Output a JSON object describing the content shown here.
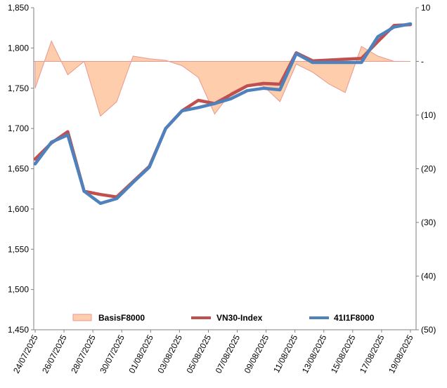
{
  "chart_data": {
    "type": "line",
    "title": "",
    "xlabel": "",
    "ylabel": "",
    "x_tick_labels": [
      "24/07/2025",
      "26/07/2025",
      "28/07/2025",
      "30/07/2025",
      "01/08/2025",
      "03/08/2025",
      "05/08/2025",
      "07/08/2025",
      "09/08/2025",
      "11/08/2025",
      "13/08/2025",
      "15/08/2025",
      "17/08/2025",
      "19/08/2025"
    ],
    "y_left": {
      "min": 1450,
      "max": 1850,
      "ticks": [
        1450,
        1500,
        1550,
        1600,
        1650,
        1700,
        1750,
        1800,
        1850
      ],
      "tick_labels": [
        "1,450",
        "1,500",
        "1,550",
        "1,600",
        "1,650",
        "1,700",
        "1,750",
        "1,800",
        "1,850"
      ]
    },
    "y_right": {
      "min": -50,
      "max": 10,
      "ticks": [
        10,
        0,
        -10,
        -20,
        -30,
        -40,
        -50
      ],
      "tick_labels": [
        "10",
        "-",
        "(10)",
        "(20)",
        "(30)",
        "(40)",
        "(50)"
      ]
    },
    "grid": false,
    "legend": {
      "position": "bottom",
      "entries": [
        "BasisF8000",
        "VN30-Index",
        "41I1F8000"
      ]
    },
    "colors": {
      "basis_fill": "#FDCDAC",
      "basis_stroke": "#E8988F",
      "vn30": "#C0504D",
      "futures": "#4F81BD",
      "axis": "#808080"
    },
    "series": [
      {
        "name": "BasisF8000",
        "kind": "area",
        "axis": "right",
        "x": [
          0,
          1,
          2,
          3,
          4,
          5,
          6,
          7,
          8,
          9,
          10,
          11,
          12,
          13,
          14,
          15,
          16,
          17,
          18,
          19,
          20,
          21,
          22,
          23
        ],
        "values": [
          -5.0,
          3.8,
          -2.5,
          0.0,
          -10.2,
          -7.5,
          1.0,
          0.5,
          0.2,
          -0.8,
          -3.0,
          -9.8,
          -5.8,
          -4.3,
          -4.6,
          -7.5,
          -0.5,
          -2.0,
          -4.2,
          -5.8,
          2.8,
          1.0,
          0.0,
          0.0
        ]
      },
      {
        "name": "VN30-Index",
        "kind": "line",
        "axis": "left",
        "x": [
          0,
          1,
          2,
          3,
          4,
          5,
          6,
          7,
          8,
          9,
          10,
          11,
          12,
          13,
          14,
          15,
          16,
          17,
          18,
          19,
          20,
          21,
          22,
          23
        ],
        "values": [
          1662,
          1682,
          1696,
          1622,
          1618,
          1615,
          1634,
          1653,
          1700,
          1722,
          1735,
          1731,
          1742,
          1753,
          1756,
          1755,
          1794,
          1784,
          1785,
          1786,
          1787,
          1808,
          1828,
          1829
        ]
      },
      {
        "name": "41I1F8000",
        "kind": "line",
        "axis": "left",
        "x": [
          0,
          1,
          2,
          3,
          4,
          5,
          6,
          7,
          8,
          9,
          10,
          11,
          12,
          13,
          14,
          15,
          16,
          17,
          18,
          19,
          20,
          21,
          22,
          23
        ],
        "values": [
          1656,
          1683,
          1692,
          1622,
          1607,
          1613,
          1633,
          1652,
          1700,
          1722,
          1726,
          1731,
          1737,
          1747,
          1750,
          1748,
          1793,
          1782,
          1782,
          1782,
          1782,
          1814,
          1826,
          1830
        ]
      }
    ]
  }
}
